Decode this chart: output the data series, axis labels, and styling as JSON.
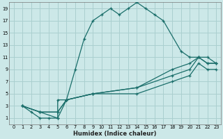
{
  "xlabel": "Humidex (Indice chaleur)",
  "bg_color": "#cce8e8",
  "grid_color": "#aacfcf",
  "line_color": "#1a6e6a",
  "xlim": [
    -0.5,
    23.5
  ],
  "ylim": [
    0,
    20
  ],
  "xticks": [
    0,
    1,
    2,
    3,
    4,
    5,
    6,
    7,
    8,
    9,
    10,
    11,
    12,
    13,
    14,
    15,
    16,
    17,
    18,
    19,
    20,
    21,
    22,
    23
  ],
  "yticks": [
    1,
    3,
    5,
    7,
    9,
    11,
    13,
    15,
    17,
    19
  ],
  "series1_x": [
    1,
    2,
    3,
    4,
    5,
    5,
    6,
    7,
    8,
    9,
    10,
    11,
    12,
    13,
    14,
    15,
    16,
    17,
    19,
    20,
    21,
    22,
    23
  ],
  "series1_y": [
    3,
    2,
    1,
    1,
    1,
    4,
    4,
    9,
    14,
    17,
    18,
    19,
    18,
    19,
    20,
    19,
    18,
    17,
    12,
    11,
    11,
    10,
    10
  ],
  "series2_x": [
    1,
    3,
    5,
    6,
    9,
    14,
    18,
    20,
    21,
    22,
    23
  ],
  "series2_y": [
    3,
    2,
    1,
    4,
    5,
    6,
    8,
    9,
    11,
    10,
    10
  ],
  "series3_x": [
    1,
    3,
    5,
    6,
    9,
    14,
    18,
    20,
    21,
    22,
    23
  ],
  "series3_y": [
    3,
    2,
    2,
    4,
    5,
    5,
    7,
    8,
    10,
    9,
    9
  ],
  "series4_x": [
    1,
    3,
    5,
    6,
    9,
    14,
    18,
    20,
    21,
    22,
    23
  ],
  "series4_y": [
    3,
    2,
    2,
    4,
    5,
    6,
    9,
    10,
    11,
    11,
    10
  ]
}
